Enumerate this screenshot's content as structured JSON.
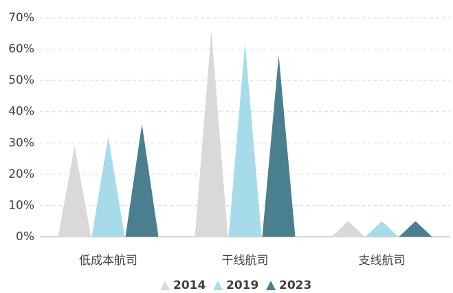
{
  "chart_data": {
    "type": "triangle-bar",
    "categories": [
      "低成本航司",
      "干线航司",
      "支线航司"
    ],
    "series": [
      {
        "name": "2014",
        "color": "#d9d9d9",
        "values": [
          29,
          66,
          5
        ]
      },
      {
        "name": "2019",
        "color": "#a6dcea",
        "values": [
          32,
          62,
          5
        ]
      },
      {
        "name": "2023",
        "color": "#4a7f8f",
        "values": [
          36,
          58,
          5
        ]
      }
    ],
    "ylim": [
      0,
      70
    ],
    "yticks": [
      {
        "value": 0,
        "label": "0%"
      },
      {
        "value": 10,
        "label": "10%"
      },
      {
        "value": 20,
        "label": "20%"
      },
      {
        "value": 30,
        "label": "30%"
      },
      {
        "value": 40,
        "label": "40%"
      },
      {
        "value": 50,
        "label": "50%"
      },
      {
        "value": 60,
        "label": "60%"
      },
      {
        "value": 70,
        "label": "70%"
      }
    ],
    "grid": true,
    "legend": "bottom"
  }
}
